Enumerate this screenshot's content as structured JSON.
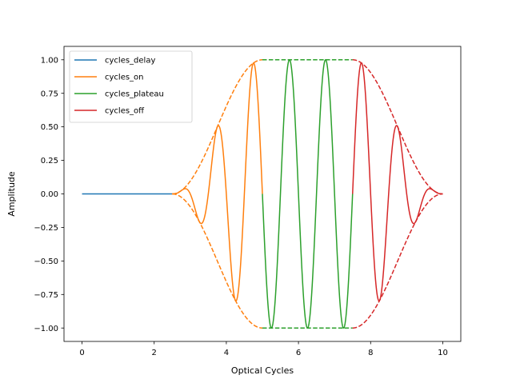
{
  "chart_data": {
    "type": "line",
    "title": "",
    "xlabel": "Optical Cycles",
    "ylabel": "Amplitude",
    "xlim": [
      -0.5,
      10.5
    ],
    "ylim": [
      -1.1,
      1.1
    ],
    "xticks": [
      0,
      2,
      4,
      6,
      8,
      10
    ],
    "yticks": [
      -1.0,
      -0.75,
      -0.5,
      -0.25,
      0.0,
      0.25,
      0.5,
      0.75,
      1.0
    ],
    "xtick_labels": [
      "0",
      "2",
      "4",
      "6",
      "8",
      "10"
    ],
    "ytick_labels": [
      "−1.00",
      "−0.75",
      "−0.50",
      "−0.25",
      "0.00",
      "0.25",
      "0.50",
      "0.75",
      "1.00"
    ],
    "grid": false,
    "legend": {
      "placement": "upper-left"
    },
    "series": [
      {
        "name": "cycles_delay",
        "color": "#1f77b4",
        "x_range": [
          0,
          2.5
        ],
        "style": "solid"
      },
      {
        "name": "cycles_on",
        "color": "#ff7f0e",
        "x_range": [
          2.5,
          5.0
        ],
        "style": "solid",
        "envelope": "sin-squared ramp up",
        "envelope_style": "dashed"
      },
      {
        "name": "cycles_plateau",
        "color": "#2ca02c",
        "x_range": [
          5.0,
          7.5
        ],
        "style": "solid",
        "envelope": "constant 1",
        "envelope_style": "dashed"
      },
      {
        "name": "cycles_off",
        "color": "#d62728",
        "x_range": [
          7.5,
          10.0
        ],
        "style": "solid",
        "envelope": "sin-squared ramp down",
        "envelope_style": "dashed"
      }
    ],
    "carrier": {
      "function": "sin",
      "cycles_per_unit": 1,
      "phase_origin": 2.5
    }
  }
}
